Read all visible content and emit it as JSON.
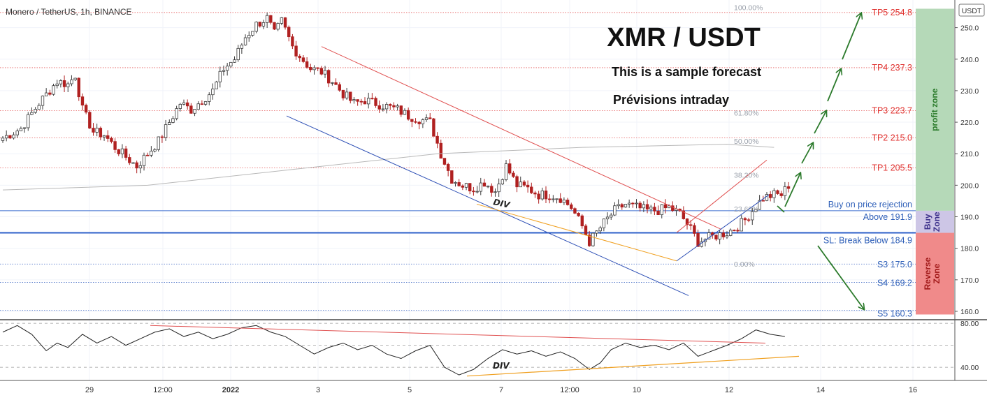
{
  "symbol_header": "Monero / TetherUS, 1h, BINANCE",
  "currency_badge": "USDT",
  "chart_title": "XMR / USDT",
  "subtitle_1": "This is a sample forecast",
  "subtitle_2": "Prévisions intraday",
  "colors": {
    "up_candle": "#3a3a3a",
    "down_candle": "#b02020",
    "profit_zone": "#b5d9b8",
    "buy_zone": "#cdc6e6",
    "reverse_zone": "#f08a8a",
    "target_text": "#e0322f",
    "support_text": "#2e5fb8",
    "arrow": "#2b7a2b"
  },
  "zones": {
    "profit": {
      "label": "profit zone",
      "from": 191.9,
      "to": 256
    },
    "buy": {
      "label": "Buy\nZone",
      "from": 184.9,
      "to": 191.9
    },
    "reverse": {
      "label": "Reverse\nZone",
      "from": 159,
      "to": 184.9
    }
  },
  "targets": [
    {
      "label": "TP5 254.8",
      "value": 254.8
    },
    {
      "label": "TP4 237.3",
      "value": 237.3
    },
    {
      "label": "TP3 223.7",
      "value": 223.7
    },
    {
      "label": "TP2 215.0",
      "value": 215.0
    },
    {
      "label": "TP1 205.5",
      "value": 205.5
    }
  ],
  "supports": [
    {
      "label": "S3 175.0",
      "value": 175.0
    },
    {
      "label": "S4 169.2",
      "value": 169.2
    },
    {
      "label": "S5 160.3",
      "value": 160.3
    }
  ],
  "entry": {
    "label_top": "Buy on price rejection",
    "label_bottom": "Above 191.9",
    "value": 191.9
  },
  "stop": {
    "label": "SL: Break Below 184.9",
    "value": 184.9
  },
  "fibonacci": [
    {
      "label": "100.00%",
      "value": 256.5
    },
    {
      "label": "61.80%",
      "value": 223.0
    },
    {
      "label": "50.00%",
      "value": 214.0
    },
    {
      "label": "38.20%",
      "value": 203.3
    },
    {
      "label": "23.60%",
      "value": 192.5
    },
    {
      "label": "0.00%",
      "value": 175.0
    }
  ],
  "annotations": {
    "div_price": "DIV",
    "div_osc": "DIV"
  },
  "chart_data": {
    "type": "candlestick",
    "price_axis": {
      "ticks": [
        160.0,
        170.0,
        180.0,
        190.0,
        200.0,
        210.0,
        220.0,
        230.0,
        240.0,
        250.0
      ],
      "range": [
        158,
        257
      ]
    },
    "oscillator_axis": {
      "ticks": [
        40.0,
        80.0
      ],
      "labels": [
        "40.00",
        "80.00"
      ],
      "range": [
        28,
        82
      ]
    },
    "time_labels": [
      "29",
      "12:00",
      "2022",
      "3",
      "5",
      "7",
      "12:00",
      "10",
      "12",
      "14",
      "16"
    ],
    "price_path": [
      [
        0,
        215
      ],
      [
        5,
        218
      ],
      [
        10,
        226
      ],
      [
        15,
        233
      ],
      [
        18,
        232
      ],
      [
        20,
        235
      ],
      [
        22,
        224
      ],
      [
        25,
        217
      ],
      [
        28,
        216
      ],
      [
        31,
        212
      ],
      [
        34,
        209
      ],
      [
        37,
        206
      ],
      [
        40,
        210
      ],
      [
        43,
        214
      ],
      [
        46,
        220
      ],
      [
        49,
        226
      ],
      [
        52,
        224
      ],
      [
        55,
        227
      ],
      [
        58,
        230
      ],
      [
        61,
        237
      ],
      [
        64,
        240
      ],
      [
        67,
        247
      ],
      [
        70,
        251
      ],
      [
        73,
        253
      ],
      [
        75,
        248
      ],
      [
        77,
        252
      ],
      [
        80,
        244
      ],
      [
        82,
        241
      ],
      [
        85,
        237
      ],
      [
        88,
        236
      ],
      [
        91,
        233
      ],
      [
        94,
        229
      ],
      [
        97,
        226
      ],
      [
        100,
        227
      ],
      [
        103,
        226
      ],
      [
        106,
        225
      ],
      [
        109,
        224
      ],
      [
        112,
        222
      ],
      [
        115,
        221
      ],
      [
        118,
        220
      ],
      [
        121,
        210
      ],
      [
        124,
        202
      ],
      [
        127,
        200
      ],
      [
        130,
        199
      ],
      [
        133,
        201
      ],
      [
        136,
        198
      ],
      [
        139,
        206
      ],
      [
        142,
        200
      ],
      [
        145,
        199
      ],
      [
        148,
        197
      ],
      [
        151,
        197
      ],
      [
        154,
        196
      ],
      [
        157,
        193
      ],
      [
        160,
        187
      ],
      [
        162,
        182
      ],
      [
        164,
        185
      ],
      [
        166,
        188
      ],
      [
        169,
        192
      ],
      [
        172,
        194
      ],
      [
        175,
        193
      ],
      [
        178,
        192
      ],
      [
        181,
        192
      ],
      [
        184,
        193
      ],
      [
        187,
        191
      ],
      [
        190,
        186
      ],
      [
        192,
        182
      ],
      [
        194,
        183
      ],
      [
        197,
        184
      ],
      [
        200,
        185
      ],
      [
        203,
        187
      ],
      [
        205,
        189
      ],
      [
        207,
        192
      ],
      [
        210,
        196
      ],
      [
        213,
        197
      ],
      [
        215,
        197
      ],
      [
        217,
        200
      ]
    ],
    "ma_line": [
      [
        0,
        198.5
      ],
      [
        40,
        200
      ],
      [
        80,
        205
      ],
      [
        120,
        210
      ],
      [
        160,
        212
      ],
      [
        200,
        213
      ],
      [
        213,
        212
      ]
    ],
    "rsi_path": [
      [
        0,
        72
      ],
      [
        4,
        78
      ],
      [
        8,
        70
      ],
      [
        12,
        55
      ],
      [
        15,
        62
      ],
      [
        18,
        58
      ],
      [
        22,
        70
      ],
      [
        26,
        62
      ],
      [
        30,
        68
      ],
      [
        34,
        60
      ],
      [
        38,
        66
      ],
      [
        42,
        72
      ],
      [
        46,
        75
      ],
      [
        50,
        68
      ],
      [
        54,
        72
      ],
      [
        58,
        66
      ],
      [
        62,
        70
      ],
      [
        66,
        76
      ],
      [
        70,
        78
      ],
      [
        74,
        72
      ],
      [
        78,
        68
      ],
      [
        82,
        60
      ],
      [
        86,
        52
      ],
      [
        90,
        58
      ],
      [
        94,
        62
      ],
      [
        98,
        56
      ],
      [
        102,
        60
      ],
      [
        106,
        52
      ],
      [
        110,
        48
      ],
      [
        114,
        55
      ],
      [
        118,
        60
      ],
      [
        122,
        40
      ],
      [
        126,
        33
      ],
      [
        130,
        38
      ],
      [
        134,
        48
      ],
      [
        138,
        56
      ],
      [
        142,
        52
      ],
      [
        146,
        55
      ],
      [
        150,
        50
      ],
      [
        154,
        54
      ],
      [
        158,
        48
      ],
      [
        162,
        38
      ],
      [
        165,
        44
      ],
      [
        168,
        56
      ],
      [
        172,
        62
      ],
      [
        176,
        58
      ],
      [
        180,
        60
      ],
      [
        184,
        56
      ],
      [
        188,
        62
      ],
      [
        192,
        50
      ],
      [
        196,
        55
      ],
      [
        200,
        60
      ],
      [
        204,
        66
      ],
      [
        208,
        74
      ],
      [
        212,
        70
      ],
      [
        216,
        68
      ]
    ]
  }
}
